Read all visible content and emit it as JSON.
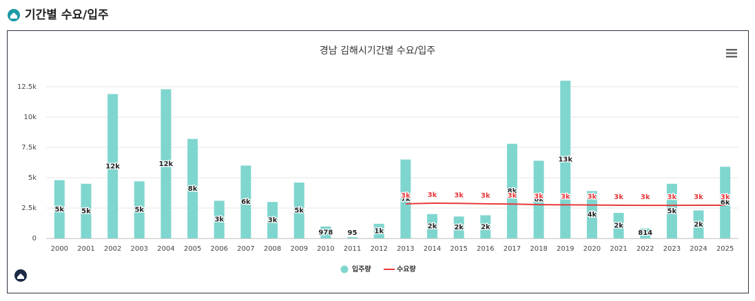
{
  "header": {
    "title": "기간별 수요/입주"
  },
  "chart_data": {
    "type": "bar",
    "title": "경남 김해시기간별 수요/입주",
    "categories": [
      "2000",
      "2001",
      "2002",
      "2003",
      "2004",
      "2005",
      "2006",
      "2007",
      "2008",
      "2009",
      "2010",
      "2011",
      "2012",
      "2013",
      "2014",
      "2015",
      "2016",
      "2017",
      "2018",
      "2019",
      "2020",
      "2021",
      "2022",
      "2023",
      "2024",
      "2025"
    ],
    "series": [
      {
        "name": "입주량",
        "type": "bar",
        "color": "#7fd6cf",
        "values": [
          4800,
          4500,
          11900,
          4700,
          12300,
          8200,
          3100,
          6000,
          3000,
          4600,
          978,
          95,
          1200,
          6500,
          2000,
          1800,
          1900,
          7800,
          6400,
          13000,
          3900,
          2100,
          814,
          4500,
          2300,
          5900
        ],
        "value_labels": [
          "5k",
          "5k",
          "12k",
          "5k",
          "12k",
          "8k",
          "3k",
          "6k",
          "3k",
          "5k",
          "978",
          "95",
          "1k",
          "7k",
          "2k",
          "2k",
          "2k",
          "8k",
          "6k",
          "13k",
          "4k",
          "2k",
          "814",
          "5k",
          "2k",
          "6k"
        ]
      },
      {
        "name": "수요량",
        "type": "line",
        "color": "#e8373a",
        "values": [
          null,
          null,
          null,
          null,
          null,
          null,
          null,
          null,
          null,
          null,
          null,
          null,
          null,
          2850,
          2900,
          2880,
          2850,
          2830,
          2780,
          2760,
          2750,
          2730,
          2720,
          2720,
          2730,
          2730
        ],
        "value_labels": [
          null,
          null,
          null,
          null,
          null,
          null,
          null,
          null,
          null,
          null,
          null,
          null,
          null,
          "3k",
          "3k",
          "3k",
          "3k",
          "3k",
          "3k",
          "3k",
          "3k",
          "3k",
          "3k",
          "3k",
          "3k",
          "3k"
        ]
      }
    ],
    "ylim": [
      0,
      12500
    ],
    "yticks": [
      0,
      {
        "value": 2500,
        "label": "2.5k"
      },
      {
        "value": 5000,
        "label": "5k"
      },
      {
        "value": 7500,
        "label": "7.5k"
      },
      {
        "value": 10000,
        "label": "10k"
      },
      {
        "value": 12500,
        "label": "12.5k"
      }
    ],
    "grid": true,
    "legend": "bottom"
  }
}
